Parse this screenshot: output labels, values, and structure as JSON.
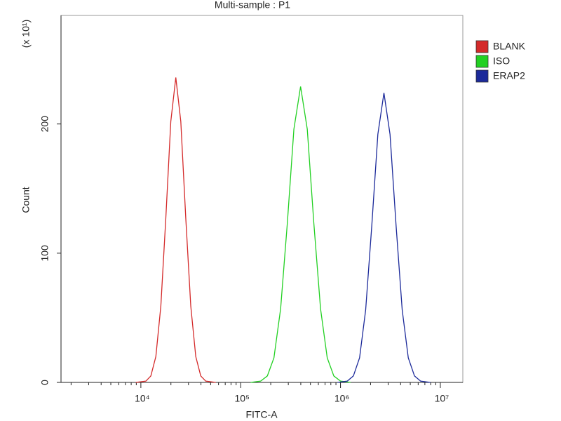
{
  "chart_data": {
    "type": "line",
    "title": "Multi-sample : P1",
    "y_label": "Count",
    "y_multiplier": "(x 10¹)",
    "x_label": "FITC-A",
    "x_log": true,
    "xlim": [
      1585,
      16800000
    ],
    "xticks": [
      {
        "value": 10000,
        "label": "10⁴"
      },
      {
        "value": 100000,
        "label": "10⁵"
      },
      {
        "value": 1000000,
        "label": "10⁶"
      },
      {
        "value": 10000000,
        "label": "10⁷"
      }
    ],
    "xminorticks": [
      2000,
      3000,
      4000,
      5000,
      6000,
      7000,
      8000,
      9000,
      20000,
      30000,
      40000,
      50000,
      60000,
      70000,
      80000,
      90000,
      200000,
      300000,
      400000,
      500000,
      600000,
      700000,
      800000,
      900000,
      2000000,
      3000000,
      4000000,
      5000000,
      6000000,
      7000000,
      8000000,
      9000000
    ],
    "ylim": [
      0,
      284
    ],
    "yticks": [
      0,
      100,
      200
    ],
    "legend": "right",
    "series": [
      {
        "name": "BLANK",
        "color": "#d42a2a",
        "x": [
          8913,
          11220,
          12590,
          14130,
          15850,
          17780,
          19950,
          22390,
          25120,
          28180,
          31620,
          35480,
          39810,
          44670,
          56230
        ],
        "values": [
          0,
          1,
          5,
          20,
          59,
          127,
          202,
          236,
          202,
          127,
          59,
          20,
          5,
          1,
          0
        ]
      },
      {
        "name": "ISO",
        "color": "#22d022",
        "x": [
          125900,
          158500,
          184900,
          215300,
          251200,
          293100,
          341200,
          398100,
          464500,
          540800,
          631000,
          736200,
          857000,
          1000000,
          1259000
        ],
        "values": [
          0,
          1,
          5,
          19,
          57,
          123,
          196,
          229,
          196,
          123,
          57,
          19,
          5,
          1,
          0
        ]
      },
      {
        "name": "ERAP2",
        "color": "#1c2a9a",
        "x": [
          933300,
          1169000,
          1346000,
          1552000,
          1786000,
          2056000,
          2366000,
          2723000,
          3133000,
          3606000,
          4150000,
          4775000,
          5508000,
          6339000,
          7943000
        ],
        "values": [
          0,
          1,
          5,
          19,
          56,
          121,
          192,
          224,
          192,
          121,
          56,
          19,
          5,
          1,
          0
        ]
      }
    ]
  }
}
